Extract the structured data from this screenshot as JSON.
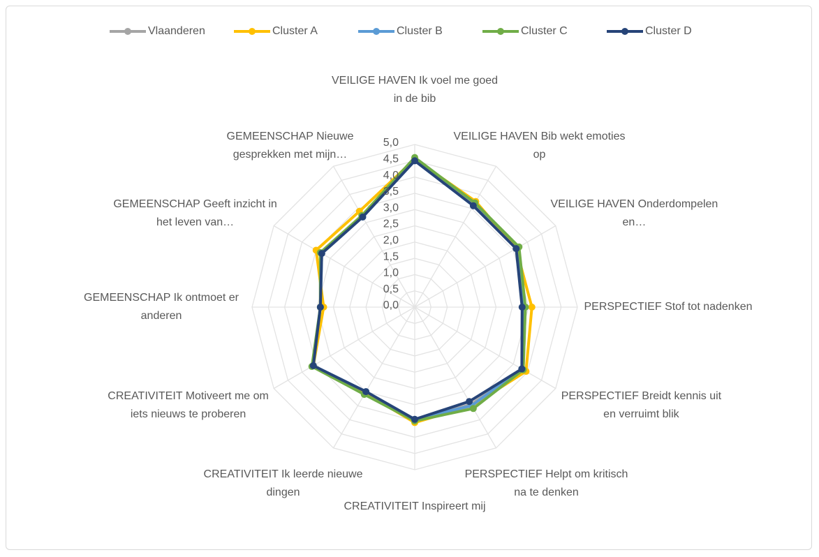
{
  "chart_data": {
    "type": "radar",
    "categories": [
      "VEILIGE HAVEN Ik voel me goed in de bib",
      "VEILIGE HAVEN Bib wekt emoties op",
      "VEILIGE HAVEN Onderdompelen en…",
      "PERSPECTIEF Stof tot nadenken",
      "PERSPECTIEF Breidt kennis uit en verruimt blik",
      "PERSPECTIEF Helpt om kritisch na te denken",
      "CREATIVITEIT Inspireert mij",
      "CREATIVITEIT Ik leerde nieuwe dingen",
      "CREATIVITEIT Motiveert me om iets nieuws te proberen",
      "GEMEENSCHAP Ik ontmoet er anderen",
      "GEMEENSCHAP Geeft inzicht in het leven van…",
      "GEMEENSCHAP Nieuwe gesprekken met mijn…"
    ],
    "series": [
      {
        "name": "Vlaanderen",
        "color": "#a5a5a5",
        "values": [
          4.5,
          3.65,
          3.65,
          3.4,
          3.85,
          3.45,
          3.5,
          3.05,
          3.6,
          2.9,
          3.35,
          3.25
        ]
      },
      {
        "name": "Cluster A",
        "color": "#ffc000",
        "values": [
          4.55,
          3.75,
          3.6,
          3.6,
          3.95,
          3.5,
          3.55,
          3.05,
          3.6,
          2.8,
          3.5,
          3.4
        ]
      },
      {
        "name": "Cluster B",
        "color": "#5b9bd5",
        "values": [
          4.5,
          3.6,
          3.6,
          3.35,
          3.8,
          3.5,
          3.45,
          3.0,
          3.6,
          2.9,
          3.3,
          3.2
        ]
      },
      {
        "name": "Cluster C",
        "color": "#70ad47",
        "values": [
          4.6,
          3.7,
          3.7,
          3.4,
          3.85,
          3.6,
          3.5,
          3.1,
          3.65,
          2.9,
          3.35,
          3.25
        ]
      },
      {
        "name": "Cluster D",
        "color": "#264478",
        "values": [
          4.5,
          3.6,
          3.6,
          3.3,
          3.8,
          3.35,
          3.45,
          3.0,
          3.6,
          2.9,
          3.3,
          3.2
        ]
      }
    ],
    "ylim": [
      0,
      5
    ],
    "yticks": [
      {
        "value": 0,
        "label": "0,0"
      },
      {
        "value": 0.5,
        "label": "0,5"
      },
      {
        "value": 1,
        "label": "1,0"
      },
      {
        "value": 1.5,
        "label": "1,5"
      },
      {
        "value": 2,
        "label": "2,0"
      },
      {
        "value": 2.5,
        "label": "2,5"
      },
      {
        "value": 3,
        "label": "3,0"
      },
      {
        "value": 3.5,
        "label": "3,5"
      },
      {
        "value": 4,
        "label": "4,0"
      },
      {
        "value": 4.5,
        "label": "4,5"
      },
      {
        "value": 5,
        "label": "5,0"
      }
    ],
    "grid": true,
    "legend": "top"
  }
}
